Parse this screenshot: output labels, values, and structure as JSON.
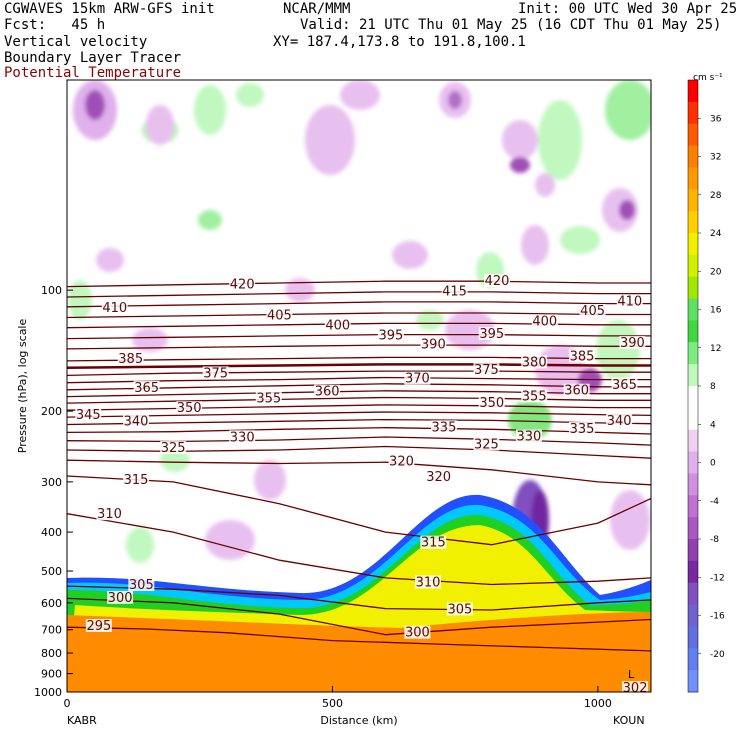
{
  "header": {
    "title": "CGWAVES 15km ARW-GFS init",
    "center": "NCAR/MMM",
    "init": "Init: 00 UTC Wed 30 Apr 25",
    "fcst": "Fcst:   45 h",
    "valid": "Valid: 21 UTC Thu 01 May 25 (16 CDT Thu 01 May 25)",
    "xy": "XY= 187.4,173.8 to 191.8,100.1",
    "field1": "Vertical velocity",
    "field2": "Boundary Layer Tracer",
    "field3": "Potential Temperature"
  },
  "colors": {
    "theta": "#6b0000",
    "tracer_orange": "#ff8c00",
    "tracer_yellow": "#f0f000",
    "tracer_green": "#20d020",
    "tracer_cyan": "#00c8ff",
    "tracer_blue": "#2050ff",
    "w_purple": "#8a3aa8",
    "w_pink": "#e8b8f0",
    "w_green_light": "#a0f0a0",
    "w_green": "#40d040"
  },
  "chart_data": {
    "type": "heatmap",
    "xlabel": "Distance (km)",
    "ylabel": "Pressure (hPa), log scale",
    "y_scale": "log",
    "x_ticks": [
      0,
      500,
      1000
    ],
    "xlim": [
      0,
      1100
    ],
    "y_ticks": [
      100,
      200,
      300,
      400,
      500,
      600,
      700,
      800,
      900,
      1000
    ],
    "ylim": [
      1000,
      30
    ],
    "left_station": "KABR",
    "right_station": "KOUN",
    "corner_labels": [
      "L",
      "302"
    ],
    "colorbar": {
      "unit": "cm s⁻¹",
      "ticks": [
        36,
        32,
        28,
        24,
        20,
        16,
        12,
        8,
        4,
        0,
        -4,
        -8,
        -12,
        -16,
        -20
      ],
      "colors": [
        "#ff0000",
        "#ff3000",
        "#ff5a00",
        "#ff8000",
        "#ff9a00",
        "#ffb400",
        "#ffd000",
        "#f0f000",
        "#d0f000",
        "#a0e800",
        "#60e060",
        "#40d840",
        "#80ec80",
        "#c0f8c0",
        "#ffffff",
        "#ffffff",
        "#f0d0f0",
        "#e0b0ec",
        "#d090e0",
        "#c070d0",
        "#a858c0",
        "#9040b0",
        "#7828a0",
        "#8050c0",
        "#7060d0",
        "#6070e0",
        "#6080f0",
        "#7090ff"
      ]
    },
    "theta_contours": [
      {
        "value": 295,
        "points": [
          [
            0,
            690
          ],
          [
            150,
            697
          ],
          [
            300,
            712
          ],
          [
            500,
            745
          ],
          [
            700,
            760
          ],
          [
            900,
            775
          ],
          [
            1100,
            790
          ]
        ]
      },
      {
        "value": 300,
        "points": [
          [
            0,
            585
          ],
          [
            200,
            600
          ],
          [
            400,
            640
          ],
          [
            600,
            720
          ],
          [
            800,
            690
          ],
          [
            1000,
            670
          ],
          [
            1100,
            660
          ]
        ]
      },
      {
        "value": 305,
        "points": [
          [
            0,
            545
          ],
          [
            200,
            555
          ],
          [
            400,
            575
          ],
          [
            600,
            620
          ],
          [
            800,
            625
          ],
          [
            1000,
            600
          ],
          [
            1100,
            590
          ]
        ]
      },
      {
        "value": 310,
        "points": [
          [
            0,
            360
          ],
          [
            200,
            400
          ],
          [
            400,
            470
          ],
          [
            600,
            520
          ],
          [
            800,
            540
          ],
          [
            1000,
            530
          ],
          [
            1100,
            520
          ]
        ]
      },
      {
        "value": 315,
        "points": [
          [
            0,
            290
          ],
          [
            200,
            300
          ],
          [
            400,
            340
          ],
          [
            600,
            400
          ],
          [
            800,
            430
          ],
          [
            1000,
            380
          ],
          [
            1100,
            330
          ]
        ]
      },
      {
        "value": 320,
        "points": [
          [
            0,
            265
          ],
          [
            200,
            268
          ],
          [
            400,
            270
          ],
          [
            600,
            268
          ],
          [
            800,
            280
          ],
          [
            1000,
            300
          ],
          [
            1100,
            305
          ]
        ]
      },
      {
        "value": 325,
        "points": [
          [
            0,
            250
          ],
          [
            200,
            252
          ],
          [
            400,
            250
          ],
          [
            600,
            245
          ],
          [
            800,
            250
          ],
          [
            1000,
            258
          ],
          [
            1100,
            262
          ]
        ]
      },
      {
        "value": 330,
        "points": [
          [
            0,
            237
          ],
          [
            200,
            238
          ],
          [
            400,
            236
          ],
          [
            600,
            232
          ],
          [
            800,
            235
          ],
          [
            1000,
            240
          ],
          [
            1100,
            243
          ]
        ]
      },
      {
        "value": 335,
        "points": [
          [
            0,
            226
          ],
          [
            200,
            225
          ],
          [
            400,
            222
          ],
          [
            600,
            220
          ],
          [
            800,
            222
          ],
          [
            1000,
            226
          ],
          [
            1100,
            228
          ]
        ]
      },
      {
        "value": 340,
        "points": [
          [
            0,
            216
          ],
          [
            200,
            214
          ],
          [
            400,
            212
          ],
          [
            600,
            210
          ],
          [
            800,
            211
          ],
          [
            1000,
            214
          ],
          [
            1100,
            215
          ]
        ]
      },
      {
        "value": 345,
        "points": [
          [
            0,
            207
          ],
          [
            200,
            205
          ],
          [
            400,
            203
          ],
          [
            600,
            201
          ],
          [
            800,
            202
          ],
          [
            1000,
            204
          ],
          [
            1100,
            205
          ]
        ]
      },
      {
        "value": 350,
        "points": [
          [
            0,
            199
          ],
          [
            200,
            197
          ],
          [
            400,
            195
          ],
          [
            600,
            193
          ],
          [
            800,
            194
          ],
          [
            1000,
            196
          ],
          [
            1100,
            196
          ]
        ]
      },
      {
        "value": 355,
        "points": [
          [
            0,
            191
          ],
          [
            200,
            189
          ],
          [
            400,
            187
          ],
          [
            600,
            185
          ],
          [
            800,
            186
          ],
          [
            1000,
            188
          ],
          [
            1100,
            188
          ]
        ]
      },
      {
        "value": 360,
        "points": [
          [
            0,
            184
          ],
          [
            200,
            182
          ],
          [
            400,
            180
          ],
          [
            600,
            178
          ],
          [
            800,
            179
          ],
          [
            1000,
            181
          ],
          [
            1100,
            181
          ]
        ]
      },
      {
        "value": 365,
        "points": [
          [
            0,
            177
          ],
          [
            200,
            175
          ],
          [
            400,
            173
          ],
          [
            600,
            171
          ],
          [
            800,
            172
          ],
          [
            1000,
            174
          ],
          [
            1100,
            174
          ]
        ]
      },
      {
        "value": 370,
        "points": [
          [
            0,
            170
          ],
          [
            200,
            168
          ],
          [
            400,
            167
          ],
          [
            600,
            165
          ],
          [
            800,
            166
          ],
          [
            1000,
            167
          ],
          [
            1100,
            167
          ]
        ]
      },
      {
        "value": 375,
        "points": [
          [
            0,
            163
          ],
          [
            200,
            161
          ],
          [
            400,
            160
          ],
          [
            600,
            159
          ],
          [
            800,
            159
          ],
          [
            1000,
            160
          ],
          [
            1100,
            160
          ]
        ]
      },
      {
        "value": 380,
        "points": [
          [
            0,
            156
          ],
          [
            200,
            155
          ],
          [
            400,
            154
          ],
          [
            600,
            153
          ],
          [
            800,
            153
          ],
          [
            1000,
            154
          ],
          [
            1100,
            154
          ]
        ]
      },
      {
        "value": 385,
        "points": [
          [
            0,
            150
          ],
          [
            200,
            149
          ],
          [
            400,
            148
          ],
          [
            600,
            147
          ],
          [
            800,
            147
          ],
          [
            1000,
            148
          ],
          [
            1100,
            148
          ]
        ]
      },
      {
        "value": 390,
        "points": [
          [
            0,
            140
          ],
          [
            200,
            139
          ],
          [
            400,
            138
          ],
          [
            600,
            137
          ],
          [
            800,
            137
          ],
          [
            1000,
            138
          ],
          [
            1100,
            138
          ]
        ]
      },
      {
        "value": 395,
        "points": [
          [
            0,
            132
          ],
          [
            200,
            131
          ],
          [
            400,
            130
          ],
          [
            600,
            129
          ],
          [
            800,
            129
          ],
          [
            1000,
            130
          ],
          [
            1100,
            130
          ]
        ]
      },
      {
        "value": 400,
        "points": [
          [
            0,
            124
          ],
          [
            200,
            123
          ],
          [
            400,
            122
          ],
          [
            600,
            121
          ],
          [
            800,
            121
          ],
          [
            1000,
            122
          ],
          [
            1100,
            122
          ]
        ]
      },
      {
        "value": 405,
        "points": [
          [
            0,
            117
          ],
          [
            200,
            116
          ],
          [
            400,
            115
          ],
          [
            600,
            114
          ],
          [
            800,
            114
          ],
          [
            1000,
            115
          ],
          [
            1100,
            115
          ]
        ]
      },
      {
        "value": 410,
        "points": [
          [
            0,
            110
          ],
          [
            200,
            109
          ],
          [
            400,
            108
          ],
          [
            600,
            107
          ],
          [
            800,
            107
          ],
          [
            1000,
            108
          ],
          [
            1100,
            108
          ]
        ]
      },
      {
        "value": 415,
        "points": [
          [
            0,
            104
          ],
          [
            200,
            103
          ],
          [
            400,
            102
          ],
          [
            600,
            101
          ],
          [
            800,
            101
          ],
          [
            1000,
            102
          ],
          [
            1100,
            102
          ]
        ]
      },
      {
        "value": 420,
        "points": [
          [
            0,
            98
          ],
          [
            200,
            97
          ],
          [
            400,
            96
          ],
          [
            600,
            95
          ],
          [
            800,
            95
          ],
          [
            1000,
            96
          ],
          [
            1100,
            96
          ]
        ]
      }
    ],
    "theta_labels": [
      {
        "text": "420",
        "x": 330,
        "p": 98
      },
      {
        "text": "410",
        "x": 90,
        "p": 112
      },
      {
        "text": "405",
        "x": 400,
        "p": 117
      },
      {
        "text": "400",
        "x": 510,
        "p": 124
      },
      {
        "text": "395",
        "x": 610,
        "p": 131
      },
      {
        "text": "390",
        "x": 690,
        "p": 138
      },
      {
        "text": "385",
        "x": 120,
        "p": 150
      },
      {
        "text": "375",
        "x": 280,
        "p": 163
      },
      {
        "text": "370",
        "x": 660,
        "p": 168
      },
      {
        "text": "365",
        "x": 150,
        "p": 177
      },
      {
        "text": "360",
        "x": 490,
        "p": 181
      },
      {
        "text": "355",
        "x": 380,
        "p": 188
      },
      {
        "text": "350",
        "x": 230,
        "p": 199
      },
      {
        "text": "340",
        "x": 130,
        "p": 215
      },
      {
        "text": "345",
        "x": 40,
        "p": 207
      },
      {
        "text": "330",
        "x": 330,
        "p": 235
      },
      {
        "text": "325",
        "x": 200,
        "p": 250
      },
      {
        "text": "320",
        "x": 630,
        "p": 270
      },
      {
        "text": "315",
        "x": 130,
        "p": 300
      },
      {
        "text": "310",
        "x": 80,
        "p": 365
      },
      {
        "text": "305",
        "x": 140,
        "p": 548
      },
      {
        "text": "300",
        "x": 100,
        "p": 590
      },
      {
        "text": "295",
        "x": 60,
        "p": 693
      },
      {
        "text": "415",
        "x": 730,
        "p": 102
      },
      {
        "text": "420",
        "x": 810,
        "p": 96
      },
      {
        "text": "405",
        "x": 990,
        "p": 114
      },
      {
        "text": "410",
        "x": 1060,
        "p": 108
      },
      {
        "text": "400",
        "x": 900,
        "p": 121
      },
      {
        "text": "395",
        "x": 800,
        "p": 130
      },
      {
        "text": "390",
        "x": 1065,
        "p": 137
      },
      {
        "text": "385",
        "x": 970,
        "p": 148
      },
      {
        "text": "380",
        "x": 880,
        "p": 153
      },
      {
        "text": "375",
        "x": 790,
        "p": 160
      },
      {
        "text": "365",
        "x": 1050,
        "p": 174
      },
      {
        "text": "360",
        "x": 960,
        "p": 180
      },
      {
        "text": "355",
        "x": 880,
        "p": 186
      },
      {
        "text": "350",
        "x": 800,
        "p": 193
      },
      {
        "text": "340",
        "x": 1040,
        "p": 214
      },
      {
        "text": "335",
        "x": 970,
        "p": 224
      },
      {
        "text": "330",
        "x": 870,
        "p": 234
      },
      {
        "text": "325",
        "x": 790,
        "p": 245
      },
      {
        "text": "335",
        "x": 710,
        "p": 222
      },
      {
        "text": "320",
        "x": 700,
        "p": 295
      },
      {
        "text": "315",
        "x": 690,
        "p": 430
      },
      {
        "text": "310",
        "x": 680,
        "p": 540
      },
      {
        "text": "305",
        "x": 740,
        "p": 630
      },
      {
        "text": "300",
        "x": 660,
        "p": 720
      },
      {
        "text": "302",
        "x": 1070,
        "p": 990
      }
    ]
  }
}
